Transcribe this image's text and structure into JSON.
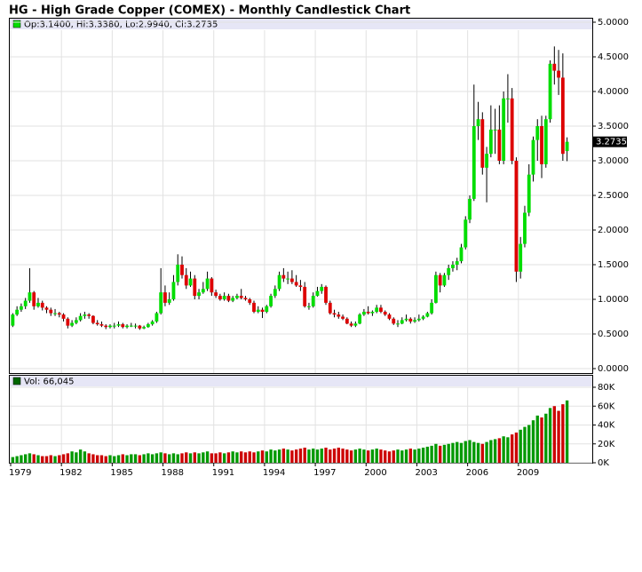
{
  "chart_data": {
    "type": "candlestick",
    "title": "HG - High Grade Copper (COMEX) - Monthly Candlestick Chart",
    "ohlc_label": "Op:3.1400, Hi:3.3380, Lo:2.9940, Cl:3.2735",
    "up_color": "#00dd00",
    "down_color": "#dd0000",
    "grid": true,
    "categories": [
      "1979",
      null,
      null,
      null,
      null,
      null,
      null,
      null,
      null,
      null,
      null,
      null,
      "1982",
      null,
      null,
      null,
      null,
      null,
      null,
      null,
      null,
      null,
      null,
      null,
      "1985",
      null,
      null,
      null,
      null,
      null,
      null,
      null,
      null,
      null,
      null,
      null,
      "1988",
      null,
      null,
      null,
      null,
      null,
      null,
      null,
      null,
      null,
      null,
      null,
      "1991",
      null,
      null,
      null,
      null,
      null,
      null,
      null,
      null,
      null,
      null,
      null,
      "1994",
      null,
      null,
      null,
      null,
      null,
      null,
      null,
      null,
      null,
      null,
      null,
      "1997",
      null,
      null,
      null,
      null,
      null,
      null,
      null,
      null,
      null,
      null,
      null,
      "2000",
      null,
      null,
      null,
      null,
      null,
      null,
      null,
      null,
      null,
      null,
      null,
      "2003",
      null,
      null,
      null,
      null,
      null,
      null,
      null,
      null,
      null,
      null,
      null,
      "2006",
      null,
      null,
      null,
      null,
      null,
      null,
      null,
      null,
      null,
      null,
      null,
      "2009",
      null,
      null,
      null,
      null,
      null,
      null,
      null,
      null,
      null,
      null,
      null
    ],
    "ohlc": [
      [
        0.62,
        0.8,
        0.6,
        0.78
      ],
      [
        0.78,
        0.9,
        0.76,
        0.85
      ],
      [
        0.85,
        0.94,
        0.82,
        0.9
      ],
      [
        0.9,
        1.02,
        0.86,
        0.98
      ],
      [
        0.98,
        1.45,
        0.95,
        1.1
      ],
      [
        1.1,
        1.12,
        0.85,
        0.9
      ],
      [
        0.9,
        1.02,
        0.88,
        0.95
      ],
      [
        0.95,
        0.98,
        0.84,
        0.88
      ],
      [
        0.88,
        0.9,
        0.8,
        0.85
      ],
      [
        0.85,
        0.88,
        0.76,
        0.8
      ],
      [
        0.8,
        0.86,
        0.76,
        0.8
      ],
      [
        0.8,
        0.82,
        0.74,
        0.78
      ],
      [
        0.78,
        0.8,
        0.68,
        0.72
      ],
      [
        0.72,
        0.74,
        0.58,
        0.62
      ],
      [
        0.62,
        0.7,
        0.6,
        0.66
      ],
      [
        0.66,
        0.74,
        0.64,
        0.7
      ],
      [
        0.7,
        0.8,
        0.68,
        0.76
      ],
      [
        0.76,
        0.82,
        0.72,
        0.78
      ],
      [
        0.78,
        0.8,
        0.72,
        0.76
      ],
      [
        0.76,
        0.77,
        0.64,
        0.66
      ],
      [
        0.66,
        0.7,
        0.62,
        0.64
      ],
      [
        0.64,
        0.68,
        0.6,
        0.62
      ],
      [
        0.62,
        0.64,
        0.57,
        0.6
      ],
      [
        0.6,
        0.64,
        0.58,
        0.62
      ],
      [
        0.62,
        0.66,
        0.58,
        0.62
      ],
      [
        0.62,
        0.68,
        0.6,
        0.64
      ],
      [
        0.64,
        0.66,
        0.58,
        0.6
      ],
      [
        0.6,
        0.64,
        0.58,
        0.62
      ],
      [
        0.62,
        0.66,
        0.6,
        0.62
      ],
      [
        0.62,
        0.65,
        0.58,
        0.62
      ],
      [
        0.62,
        0.63,
        0.56,
        0.58
      ],
      [
        0.58,
        0.62,
        0.57,
        0.6
      ],
      [
        0.6,
        0.66,
        0.59,
        0.64
      ],
      [
        0.64,
        0.7,
        0.62,
        0.68
      ],
      [
        0.68,
        0.82,
        0.66,
        0.8
      ],
      [
        0.8,
        1.45,
        0.78,
        1.1
      ],
      [
        1.1,
        1.2,
        0.9,
        0.95
      ],
      [
        0.95,
        1.1,
        0.92,
        1.0
      ],
      [
        1.0,
        1.35,
        0.98,
        1.25
      ],
      [
        1.25,
        1.65,
        1.2,
        1.5
      ],
      [
        1.5,
        1.62,
        1.3,
        1.35
      ],
      [
        1.35,
        1.45,
        1.15,
        1.2
      ],
      [
        1.2,
        1.4,
        1.18,
        1.3
      ],
      [
        1.3,
        1.35,
        1.0,
        1.05
      ],
      [
        1.05,
        1.15,
        1.0,
        1.1
      ],
      [
        1.1,
        1.25,
        1.08,
        1.15
      ],
      [
        1.15,
        1.4,
        1.12,
        1.3
      ],
      [
        1.3,
        1.32,
        1.05,
        1.1
      ],
      [
        1.1,
        1.14,
        1.02,
        1.05
      ],
      [
        1.05,
        1.08,
        0.98,
        1.0
      ],
      [
        1.0,
        1.1,
        0.98,
        1.05
      ],
      [
        1.05,
        1.08,
        0.96,
        0.98
      ],
      [
        0.98,
        1.05,
        0.96,
        1.02
      ],
      [
        1.02,
        1.08,
        1.0,
        1.05
      ],
      [
        1.05,
        1.15,
        1.0,
        1.02
      ],
      [
        1.02,
        1.05,
        0.98,
        1.0
      ],
      [
        1.0,
        1.02,
        0.92,
        0.95
      ],
      [
        0.95,
        0.98,
        0.8,
        0.82
      ],
      [
        0.82,
        0.9,
        0.8,
        0.85
      ],
      [
        0.85,
        0.88,
        0.73,
        0.82
      ],
      [
        0.82,
        0.92,
        0.8,
        0.9
      ],
      [
        0.9,
        1.08,
        0.88,
        1.05
      ],
      [
        1.05,
        1.2,
        1.02,
        1.15
      ],
      [
        1.15,
        1.4,
        1.12,
        1.35
      ],
      [
        1.35,
        1.45,
        1.25,
        1.3
      ],
      [
        1.3,
        1.4,
        1.22,
        1.3
      ],
      [
        1.3,
        1.42,
        1.22,
        1.25
      ],
      [
        1.25,
        1.35,
        1.18,
        1.2
      ],
      [
        1.2,
        1.28,
        1.12,
        1.18
      ],
      [
        1.18,
        1.25,
        0.88,
        0.9
      ],
      [
        0.9,
        0.95,
        0.85,
        0.9
      ],
      [
        0.9,
        1.1,
        0.88,
        1.05
      ],
      [
        1.05,
        1.18,
        1.04,
        1.12
      ],
      [
        1.12,
        1.22,
        1.08,
        1.18
      ],
      [
        1.18,
        1.2,
        0.92,
        0.95
      ],
      [
        0.95,
        0.98,
        0.78,
        0.8
      ],
      [
        0.8,
        0.85,
        0.74,
        0.78
      ],
      [
        0.78,
        0.82,
        0.72,
        0.75
      ],
      [
        0.75,
        0.78,
        0.7,
        0.72
      ],
      [
        0.72,
        0.74,
        0.64,
        0.65
      ],
      [
        0.65,
        0.68,
        0.6,
        0.62
      ],
      [
        0.62,
        0.68,
        0.6,
        0.65
      ],
      [
        0.65,
        0.8,
        0.64,
        0.78
      ],
      [
        0.78,
        0.86,
        0.76,
        0.82
      ],
      [
        0.82,
        0.9,
        0.78,
        0.8
      ],
      [
        0.8,
        0.84,
        0.76,
        0.82
      ],
      [
        0.82,
        0.92,
        0.8,
        0.88
      ],
      [
        0.88,
        0.92,
        0.8,
        0.82
      ],
      [
        0.82,
        0.84,
        0.76,
        0.78
      ],
      [
        0.78,
        0.8,
        0.7,
        0.72
      ],
      [
        0.72,
        0.74,
        0.63,
        0.65
      ],
      [
        0.65,
        0.7,
        0.6,
        0.65
      ],
      [
        0.65,
        0.74,
        0.64,
        0.7
      ],
      [
        0.7,
        0.78,
        0.68,
        0.72
      ],
      [
        0.72,
        0.74,
        0.65,
        0.68
      ],
      [
        0.68,
        0.74,
        0.66,
        0.7
      ],
      [
        0.7,
        0.78,
        0.68,
        0.72
      ],
      [
        0.72,
        0.77,
        0.7,
        0.75
      ],
      [
        0.75,
        0.82,
        0.74,
        0.8
      ],
      [
        0.8,
        1.0,
        0.78,
        0.95
      ],
      [
        0.95,
        1.4,
        0.94,
        1.35
      ],
      [
        1.35,
        1.38,
        1.1,
        1.2
      ],
      [
        1.2,
        1.38,
        1.18,
        1.35
      ],
      [
        1.35,
        1.5,
        1.28,
        1.45
      ],
      [
        1.45,
        1.55,
        1.4,
        1.5
      ],
      [
        1.5,
        1.6,
        1.42,
        1.55
      ],
      [
        1.55,
        1.8,
        1.52,
        1.75
      ],
      [
        1.75,
        2.2,
        1.72,
        2.15
      ],
      [
        2.15,
        2.5,
        2.1,
        2.45
      ],
      [
        2.45,
        4.1,
        2.42,
        3.5
      ],
      [
        3.5,
        3.85,
        3.3,
        3.6
      ],
      [
        3.6,
        3.7,
        2.8,
        2.9
      ],
      [
        2.9,
        3.2,
        2.4,
        3.1
      ],
      [
        3.1,
        3.8,
        3.05,
        3.45
      ],
      [
        3.45,
        3.75,
        3.1,
        3.45
      ],
      [
        3.45,
        3.8,
        2.95,
        3.0
      ],
      [
        3.0,
        4.0,
        2.95,
        3.9
      ],
      [
        3.9,
        4.25,
        3.55,
        3.9
      ],
      [
        3.9,
        4.05,
        2.95,
        3.0
      ],
      [
        3.0,
        3.05,
        1.25,
        1.4
      ],
      [
        1.4,
        1.9,
        1.3,
        1.8
      ],
      [
        1.8,
        2.35,
        1.75,
        2.25
      ],
      [
        2.25,
        2.95,
        2.2,
        2.8
      ],
      [
        2.8,
        3.35,
        2.7,
        3.3
      ],
      [
        3.3,
        3.6,
        3.0,
        3.5
      ],
      [
        3.5,
        3.65,
        2.75,
        2.95
      ],
      [
        2.95,
        3.65,
        2.9,
        3.6
      ],
      [
        3.6,
        4.45,
        3.55,
        4.4
      ],
      [
        4.4,
        4.65,
        4.1,
        4.3
      ],
      [
        4.3,
        4.6,
        3.95,
        4.2
      ],
      [
        4.2,
        4.55,
        3.0,
        3.1
      ],
      [
        3.14,
        3.338,
        2.994,
        3.2735
      ]
    ],
    "last_price": 3.2735,
    "ylim": [
      0,
      5
    ],
    "yticks": [
      {
        "value": 0,
        "label": "0.0000"
      },
      {
        "value": 0.5,
        "label": "0.5000"
      },
      {
        "value": 1,
        "label": "1.0000"
      },
      {
        "value": 1.5,
        "label": "1.5000"
      },
      {
        "value": 2,
        "label": "2.0000"
      },
      {
        "value": 2.5,
        "label": "2.5000"
      },
      {
        "value": 3,
        "label": "3.0000"
      },
      {
        "value": 3.5,
        "label": "3.5000"
      },
      {
        "value": 4,
        "label": "4.0000"
      },
      {
        "value": 4.5,
        "label": "4.5000"
      },
      {
        "value": 5,
        "label": "5.0000"
      }
    ],
    "volume": {
      "label": "Vol: 66,045",
      "color": "#006600",
      "ylim": [
        0,
        80000
      ],
      "yticks": [
        {
          "value": 0,
          "label": "0K"
        },
        {
          "value": 20000,
          "label": "20K"
        },
        {
          "value": 40000,
          "label": "40K"
        },
        {
          "value": 60000,
          "label": "60K"
        },
        {
          "value": 80000,
          "label": "80K"
        }
      ],
      "values": [
        6000,
        7000,
        8000,
        9000,
        10000,
        9000,
        8000,
        7000,
        7000,
        8000,
        7000,
        8000,
        9000,
        10000,
        12000,
        11000,
        14000,
        12000,
        10000,
        9000,
        8000,
        8000,
        7000,
        8000,
        7000,
        8000,
        9000,
        8000,
        9000,
        9000,
        8000,
        9000,
        10000,
        9000,
        10000,
        11000,
        10000,
        9000,
        10000,
        9000,
        10000,
        11000,
        10000,
        11000,
        10000,
        11000,
        12000,
        10000,
        10000,
        11000,
        10000,
        11000,
        12000,
        11000,
        12000,
        11000,
        12000,
        11000,
        12000,
        13000,
        12000,
        14000,
        13000,
        14000,
        15000,
        14000,
        13000,
        14000,
        15000,
        16000,
        14000,
        15000,
        14000,
        15000,
        16000,
        14000,
        15000,
        16000,
        15000,
        14000,
        13000,
        14000,
        15000,
        14000,
        13000,
        14000,
        15000,
        14000,
        13000,
        12000,
        13000,
        14000,
        13000,
        14000,
        15000,
        14000,
        15000,
        16000,
        17000,
        18000,
        20000,
        18000,
        19000,
        20000,
        21000,
        22000,
        21000,
        23000,
        24000,
        22000,
        21000,
        20000,
        22000,
        24000,
        25000,
        26000,
        28000,
        27000,
        30000,
        32000,
        35000,
        38000,
        40000,
        45000,
        50000,
        48000,
        52000,
        58000,
        60000,
        55000,
        62000,
        66045
      ]
    }
  }
}
